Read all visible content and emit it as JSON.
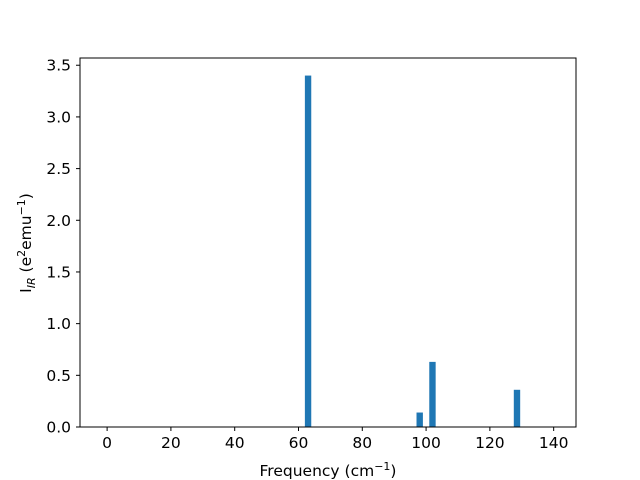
{
  "chart_data": {
    "type": "bar",
    "title": "",
    "xlabel": {
      "main": "Frequency (cm",
      "sup": "−1",
      "close": ")"
    },
    "ylabel": {
      "base": "I",
      "sub": "IR",
      "mid": " (e",
      "sup1": "2",
      "mid2": "emu",
      "sup2": "−1",
      "close": ")"
    },
    "xlim": [
      -8.5,
      147
    ],
    "ylim": [
      0,
      3.57
    ],
    "xticks": [
      {
        "value": 0,
        "label": "0"
      },
      {
        "value": 20,
        "label": "20"
      },
      {
        "value": 40,
        "label": "40"
      },
      {
        "value": 60,
        "label": "60"
      },
      {
        "value": 80,
        "label": "80"
      },
      {
        "value": 100,
        "label": "100"
      },
      {
        "value": 120,
        "label": "120"
      },
      {
        "value": 140,
        "label": "140"
      }
    ],
    "yticks": [
      {
        "value": 0.0,
        "label": "0.0"
      },
      {
        "value": 0.5,
        "label": "0.5"
      },
      {
        "value": 1.0,
        "label": "1.0"
      },
      {
        "value": 1.5,
        "label": "1.5"
      },
      {
        "value": 2.0,
        "label": "2.0"
      },
      {
        "value": 2.5,
        "label": "2.5"
      },
      {
        "value": 3.0,
        "label": "3.0"
      },
      {
        "value": 3.5,
        "label": "3.5"
      }
    ],
    "bar_width": 2,
    "color": "#1f77b4",
    "bars": [
      {
        "x": 63,
        "value": 3.4
      },
      {
        "x": 98,
        "value": 0.14
      },
      {
        "x": 102,
        "value": 0.63
      },
      {
        "x": 128.5,
        "value": 0.36
      }
    ],
    "grid": false,
    "legend": "none"
  }
}
